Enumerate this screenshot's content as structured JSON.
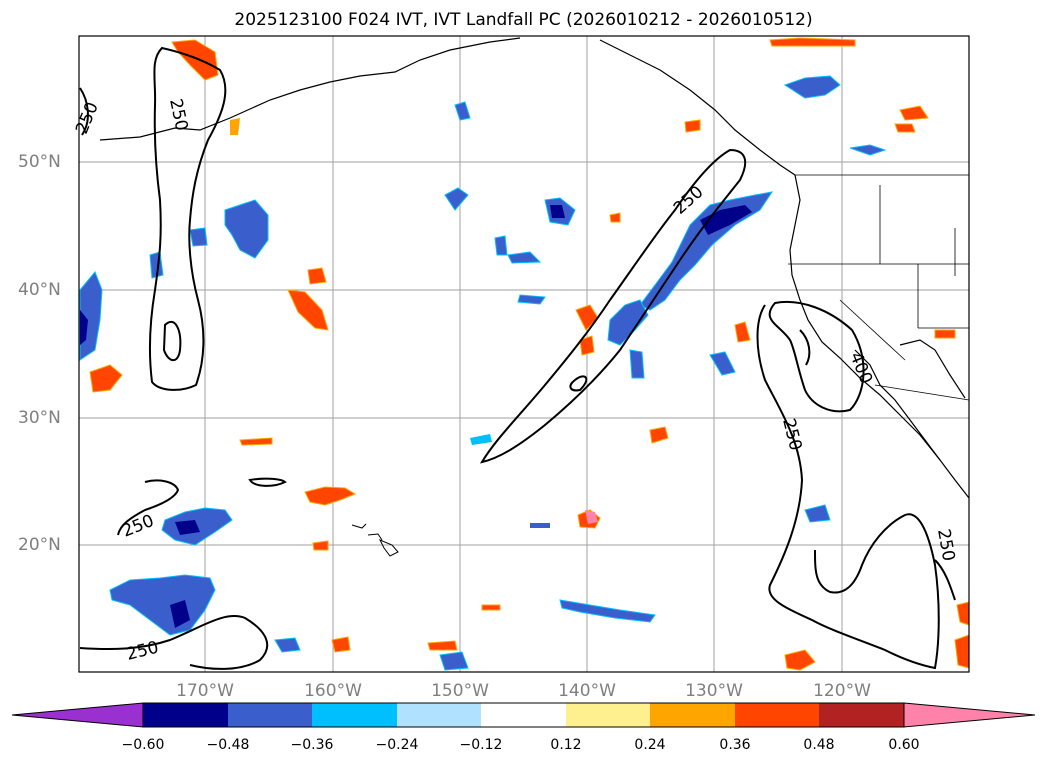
{
  "title": "2025123100 F024 IVT, IVT Landfall PC (2026010212 - 2026010512)",
  "lat_labels": [
    "50°N",
    "40°N",
    "30°N",
    "20°N"
  ],
  "lon_labels": [
    "170°W",
    "160°W",
    "150°W",
    "140°W",
    "130°W",
    "120°W"
  ],
  "contour_labels": [
    "250",
    "250",
    "250",
    "250",
    "250",
    "250",
    "250",
    "400"
  ],
  "colorbar": {
    "ticks": [
      "−0.60",
      "−0.48",
      "−0.36",
      "−0.24",
      "−0.12",
      "0.12",
      "0.24",
      "0.36",
      "0.48",
      "0.60"
    ],
    "colors": [
      "#9b30d0",
      "#00008b",
      "#3a5fcd",
      "#00bfff",
      "#b0e2ff",
      "#ffffff",
      "#fff08f",
      "#ffa500",
      "#ff4500",
      "#b22222",
      "#ff82ab"
    ]
  },
  "colors": {
    "contour": "#000000",
    "grid": "#a0a0a0",
    "axis_label": "#7f7f7f"
  }
}
